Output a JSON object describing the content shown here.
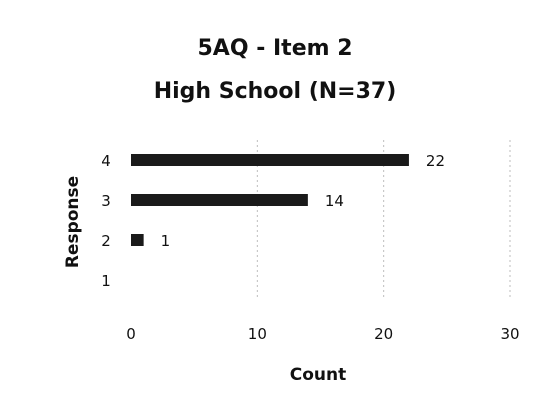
{
  "chart_data": {
    "type": "bar",
    "orientation": "horizontal",
    "title_lines": [
      "5AQ - Item 2",
      "High School (N=37)"
    ],
    "categories": [
      "1",
      "2",
      "3",
      "4"
    ],
    "values": [
      0,
      1,
      14,
      22
    ],
    "data_labels": [
      "",
      "1",
      "14",
      "22"
    ],
    "xlabel": "Count",
    "ylabel": "Response",
    "xlim": [
      0,
      30
    ],
    "x_ticks": [
      "0",
      "10",
      "20",
      "30"
    ],
    "grid": true,
    "legend": "none",
    "bar_color": "#1a1a1a",
    "grid_color": "#bdbdbd"
  }
}
